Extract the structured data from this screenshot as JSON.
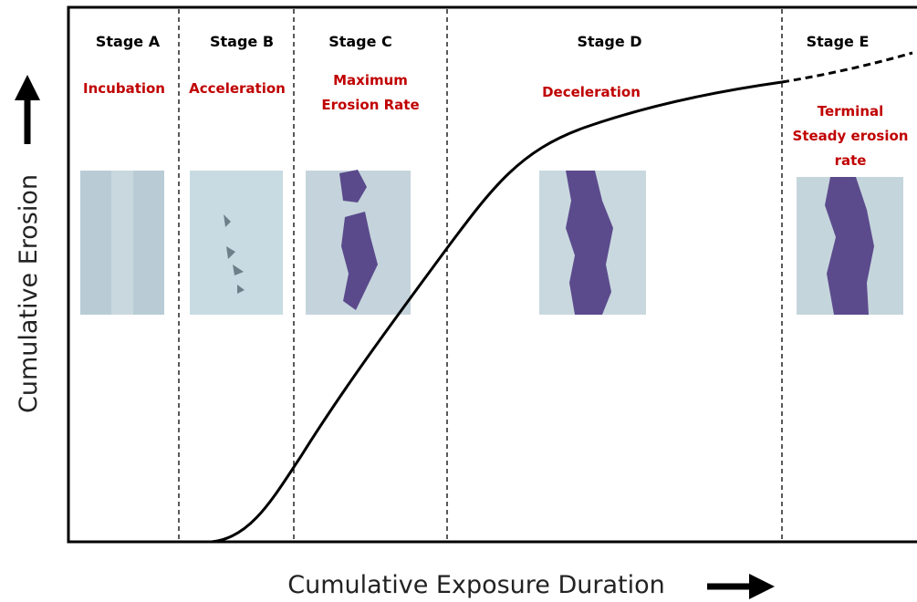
{
  "axes": {
    "y_label": "Cumulative Erosion",
    "x_label": "Cumulative Exposure Duration"
  },
  "stages": [
    {
      "name": "Stage A",
      "description": [
        "Incubation"
      ]
    },
    {
      "name": "Stage B",
      "description": [
        "Acceleration"
      ]
    },
    {
      "name": "Stage C",
      "description": [
        "Maximum",
        "Erosion Rate"
      ]
    },
    {
      "name": "Stage D",
      "description": [
        "Deceleration"
      ]
    },
    {
      "name": "Stage E",
      "description": [
        "Terminal",
        "Steady erosion",
        "rate"
      ]
    }
  ]
}
